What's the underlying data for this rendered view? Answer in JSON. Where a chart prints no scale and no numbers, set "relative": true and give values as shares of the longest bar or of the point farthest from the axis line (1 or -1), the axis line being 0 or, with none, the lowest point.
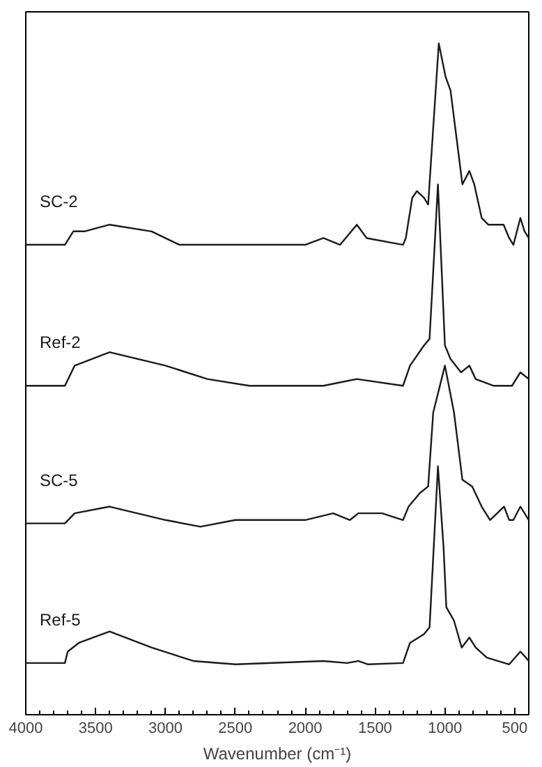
{
  "chart_data": {
    "type": "line",
    "relative": true,
    "xlabel": "Wavenumber (cm⁻¹)",
    "xlim": [
      4000,
      400
    ],
    "xticks": [
      4000,
      3500,
      3000,
      2500,
      2000,
      1500,
      1000,
      500
    ],
    "tick_labels": "x",
    "grid": false,
    "line_style": "solid",
    "marker": "none",
    "series": [
      {
        "name": "SC-2",
        "color": "#1a1a1a",
        "x": [
          4000,
          3720,
          3660,
          3580,
          3400,
          3100,
          2900,
          2500,
          2000,
          1870,
          1750,
          1630,
          1560,
          1300,
          1280,
          1234,
          1200,
          1150,
          1120,
          1044,
          995,
          960,
          875,
          825,
          790,
          737,
          690,
          626,
          580,
          540,
          510,
          460,
          430,
          400
        ],
        "values": [
          0.7,
          0.7,
          0.72,
          0.72,
          0.73,
          0.72,
          0.7,
          0.7,
          0.7,
          0.71,
          0.7,
          0.73,
          0.71,
          0.7,
          0.71,
          0.77,
          0.78,
          0.77,
          0.76,
          1.0,
          0.95,
          0.93,
          0.79,
          0.81,
          0.79,
          0.74,
          0.73,
          0.73,
          0.73,
          0.71,
          0.7,
          0.74,
          0.72,
          0.71
        ]
      },
      {
        "name": "Ref-2",
        "color": "#1a1a1a",
        "x": [
          4000,
          3720,
          3650,
          3400,
          3000,
          2700,
          2400,
          1870,
          1630,
          1300,
          1250,
          1150,
          1110,
          1050,
          1000,
          960,
          885,
          825,
          780,
          650,
          520,
          460,
          400
        ],
        "values": [
          0.49,
          0.49,
          0.52,
          0.54,
          0.52,
          0.5,
          0.49,
          0.49,
          0.5,
          0.49,
          0.52,
          0.55,
          0.56,
          0.79,
          0.55,
          0.53,
          0.51,
          0.52,
          0.5,
          0.49,
          0.49,
          0.51,
          0.5
        ]
      },
      {
        "name": "SC-5",
        "color": "#1a1a1a",
        "x": [
          4000,
          3720,
          3650,
          3400,
          3000,
          2750,
          2500,
          2000,
          1800,
          1680,
          1620,
          1550,
          1450,
          1300,
          1260,
          1180,
          1120,
          1084,
          1000,
          935,
          875,
          805,
          737,
          677,
          577,
          540,
          510,
          460,
          430,
          400
        ],
        "values": [
          0.285,
          0.285,
          0.3,
          0.31,
          0.29,
          0.28,
          0.29,
          0.29,
          0.3,
          0.29,
          0.3,
          0.3,
          0.3,
          0.29,
          0.31,
          0.33,
          0.34,
          0.45,
          0.52,
          0.45,
          0.35,
          0.34,
          0.31,
          0.29,
          0.31,
          0.29,
          0.29,
          0.31,
          0.3,
          0.29
        ]
      },
      {
        "name": "Ref-5",
        "color": "#1a1a1a",
        "x": [
          4000,
          3720,
          3700,
          3620,
          3400,
          3100,
          2800,
          2500,
          1870,
          1700,
          1620,
          1550,
          1300,
          1250,
          1150,
          1110,
          1050,
          1010,
          990,
          935,
          880,
          825,
          780,
          700,
          540,
          460,
          420,
          400
        ],
        "values": [
          0.077,
          0.077,
          0.094,
          0.107,
          0.124,
          0.1,
          0.08,
          0.075,
          0.08,
          0.077,
          0.08,
          0.075,
          0.077,
          0.107,
          0.12,
          0.13,
          0.37,
          0.25,
          0.16,
          0.14,
          0.1,
          0.115,
          0.1,
          0.085,
          0.075,
          0.094,
          0.085,
          0.08
        ]
      }
    ]
  }
}
